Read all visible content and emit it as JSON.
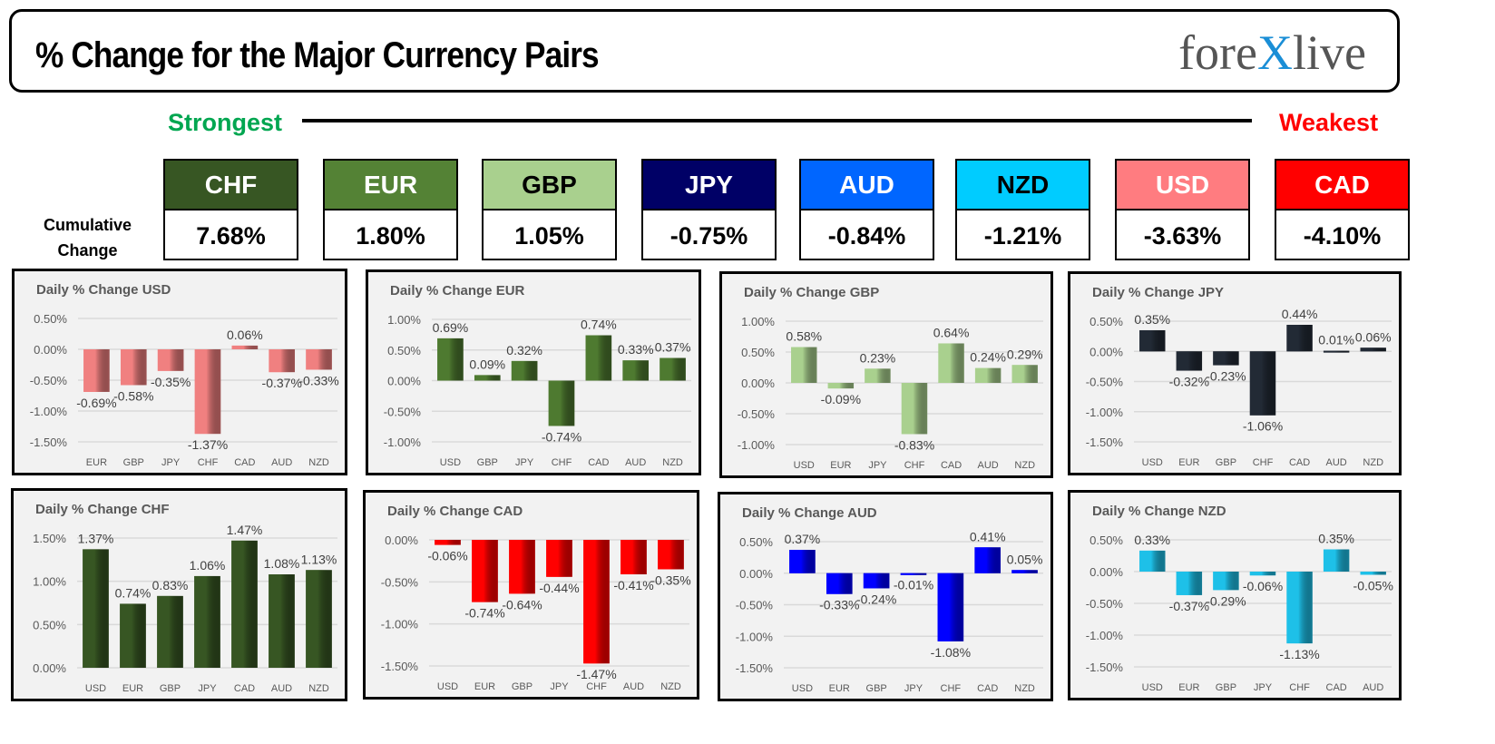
{
  "header": {
    "title": "% Change for the Major Currency Pairs",
    "logo": "forexlive"
  },
  "scale": {
    "strongest": "Strongest",
    "weakest": "Weakest"
  },
  "cumulative": {
    "label_line1": "Cumulative",
    "label_line2": "Change",
    "items": [
      {
        "name": "CHF",
        "value": "7.68%",
        "color": "#375623",
        "text": "#ffffff"
      },
      {
        "name": "EUR",
        "value": "1.80%",
        "color": "#548235",
        "text": "#ffffff"
      },
      {
        "name": "GBP",
        "value": "1.05%",
        "color": "#a9d08e",
        "text": "#000000"
      },
      {
        "name": "JPY",
        "value": "-0.75%",
        "color": "#000066",
        "text": "#ffffff"
      },
      {
        "name": "AUD",
        "value": "-0.84%",
        "color": "#0066ff",
        "text": "#ffffff"
      },
      {
        "name": "NZD",
        "value": "-1.21%",
        "color": "#00ccff",
        "text": "#000000"
      },
      {
        "name": "USD",
        "value": "-3.63%",
        "color": "#ff7c80",
        "text": "#ffffff"
      },
      {
        "name": "CAD",
        "value": "-4.10%",
        "color": "#ff0000",
        "text": "#ffffff"
      }
    ]
  },
  "chart_data": [
    {
      "type": "bar",
      "title": "Daily % Change USD",
      "categories": [
        "EUR",
        "GBP",
        "JPY",
        "CHF",
        "CAD",
        "AUD",
        "NZD"
      ],
      "values": [
        -0.69,
        -0.58,
        -0.35,
        -1.37,
        0.06,
        -0.37,
        -0.33
      ],
      "ylim": [
        -1.5,
        0.5
      ],
      "ticks": [
        0.5,
        0,
        -0.5,
        -1,
        -1.5
      ],
      "color": "#f08080",
      "grid": true
    },
    {
      "type": "bar",
      "title": "Daily % Change EUR",
      "categories": [
        "USD",
        "GBP",
        "JPY",
        "CHF",
        "CAD",
        "AUD",
        "NZD"
      ],
      "values": [
        0.69,
        0.09,
        0.32,
        -0.74,
        0.74,
        0.33,
        0.37
      ],
      "ylim": [
        -1,
        1
      ],
      "ticks": [
        1,
        0.5,
        0,
        -0.5,
        -1
      ],
      "color": "#4e7a30",
      "grid": true
    },
    {
      "type": "bar",
      "title": "Daily % Change GBP",
      "categories": [
        "USD",
        "EUR",
        "JPY",
        "CHF",
        "CAD",
        "AUD",
        "NZD"
      ],
      "values": [
        0.58,
        -0.09,
        0.23,
        -0.83,
        0.64,
        0.24,
        0.29
      ],
      "ylim": [
        -1,
        1
      ],
      "ticks": [
        1,
        0.5,
        0,
        -0.5,
        -1
      ],
      "color": "#a9d08e",
      "grid": true
    },
    {
      "type": "bar",
      "title": "Daily % Change JPY",
      "categories": [
        "USD",
        "EUR",
        "GBP",
        "CHF",
        "CAD",
        "AUD",
        "NZD"
      ],
      "values": [
        0.35,
        -0.32,
        -0.23,
        -1.06,
        0.44,
        0.01,
        0.06
      ],
      "ylim": [
        -1.5,
        0.5
      ],
      "ticks": [
        0.5,
        0,
        -0.5,
        -1,
        -1.5
      ],
      "color": "#222a35",
      "grid": true
    },
    {
      "type": "bar",
      "title": "Daily % Change CHF",
      "categories": [
        "USD",
        "EUR",
        "GBP",
        "JPY",
        "CAD",
        "AUD",
        "NZD"
      ],
      "values": [
        1.37,
        0.74,
        0.83,
        1.06,
        1.47,
        1.08,
        1.13
      ],
      "ylim": [
        0,
        1.5
      ],
      "ticks": [
        1.5,
        1,
        0.5,
        0
      ],
      "color": "#375623",
      "grid": true
    },
    {
      "type": "bar",
      "title": "Daily % Change CAD",
      "categories": [
        "USD",
        "EUR",
        "GBP",
        "JPY",
        "CHF",
        "AUD",
        "NZD"
      ],
      "values": [
        -0.06,
        -0.74,
        -0.64,
        -0.44,
        -1.47,
        -0.41,
        -0.35
      ],
      "ylim": [
        -1.5,
        0
      ],
      "ticks": [
        0,
        -0.5,
        -1,
        -1.5
      ],
      "color": "#ff0000",
      "grid": true
    },
    {
      "type": "bar",
      "title": "Daily % Change AUD",
      "categories": [
        "USD",
        "EUR",
        "GBP",
        "JPY",
        "CHF",
        "CAD",
        "NZD"
      ],
      "values": [
        0.37,
        -0.33,
        -0.24,
        -0.01,
        -1.08,
        0.41,
        0.05
      ],
      "ylim": [
        -1.5,
        0.5
      ],
      "ticks": [
        0.5,
        0,
        -0.5,
        -1,
        -1.5
      ],
      "color": "#0000ff",
      "grid": true
    },
    {
      "type": "bar",
      "title": "Daily % Change NZD",
      "categories": [
        "USD",
        "EUR",
        "GBP",
        "JPY",
        "CHF",
        "CAD",
        "AUD"
      ],
      "values": [
        0.33,
        -0.37,
        -0.29,
        -0.06,
        -1.13,
        0.35,
        -0.05
      ],
      "ylim": [
        -1.5,
        0.5
      ],
      "ticks": [
        0.5,
        0,
        -0.5,
        -1,
        -1.5
      ],
      "color": "#1ec0e8",
      "grid": true
    }
  ]
}
